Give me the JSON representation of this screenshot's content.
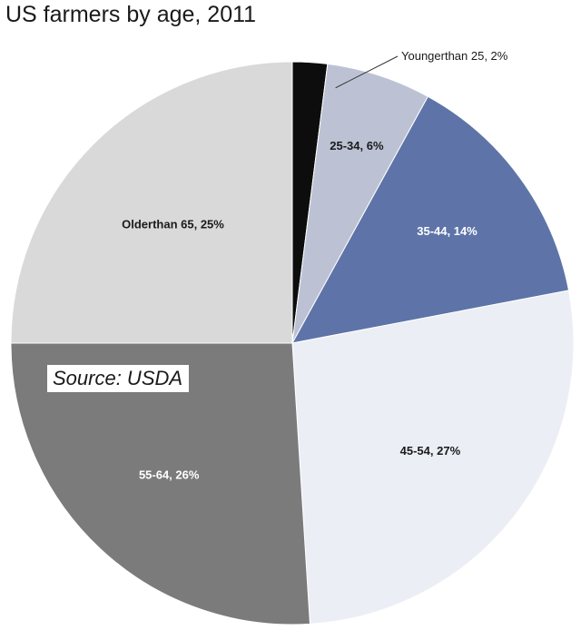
{
  "chart_data": {
    "type": "pie",
    "title": "US farmers by age, 2011",
    "categories": [
      "Younger than 25",
      "25-34",
      "35-44",
      "45-54",
      "55-64",
      "Older than 65"
    ],
    "values": [
      2,
      6,
      14,
      27,
      26,
      25
    ],
    "labels": [
      "Youngerthan 25, 2%",
      "25-34, 6%",
      "35-44, 14%",
      "45-54, 27%",
      "55-64, 26%",
      "Olderthan 65, 25%"
    ],
    "colors": [
      "#0d0d0d",
      "#bcc2d4",
      "#5e74a8",
      "#eceef5",
      "#7b7b7b",
      "#d9d9d9"
    ],
    "label_colors": [
      "#1a1a1a",
      "#1a1a1a",
      "#ffffff",
      "#1a1a1a",
      "#ffffff",
      "#1a1a1a"
    ],
    "legend": "none",
    "annotation": "Source: USDA"
  }
}
